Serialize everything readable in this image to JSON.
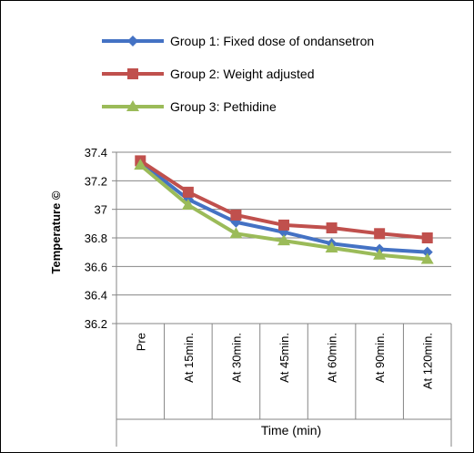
{
  "chart_data": {
    "type": "line",
    "title": "",
    "xlabel": "Time (min)",
    "ylabel": "Temperature ©",
    "categories": [
      "Pre",
      "At 15min.",
      "At 30min.",
      "At 45min.",
      "At 60min.",
      "At 90min.",
      "At 120min."
    ],
    "ylim": [
      36.2,
      37.4
    ],
    "yticks": [
      "37.4",
      "37.2",
      "37",
      "36.8",
      "36.6",
      "36.4",
      "36.2"
    ],
    "grid": true,
    "legend_position": "top",
    "series": [
      {
        "name": "Group 1: Fixed dose of ondansetron",
        "color": "#4472C4",
        "marker": "diamond",
        "values": [
          37.33,
          37.07,
          36.91,
          36.84,
          36.76,
          36.72,
          36.7
        ]
      },
      {
        "name": "Group 2: Weight adjusted",
        "color": "#C0504D",
        "marker": "square",
        "values": [
          37.34,
          37.12,
          36.96,
          36.89,
          36.87,
          36.83,
          36.8
        ]
      },
      {
        "name": "Group 3: Pethidine",
        "color": "#9BBB59",
        "marker": "triangle",
        "values": [
          37.31,
          37.03,
          36.83,
          36.78,
          36.73,
          36.68,
          36.65
        ]
      }
    ]
  }
}
